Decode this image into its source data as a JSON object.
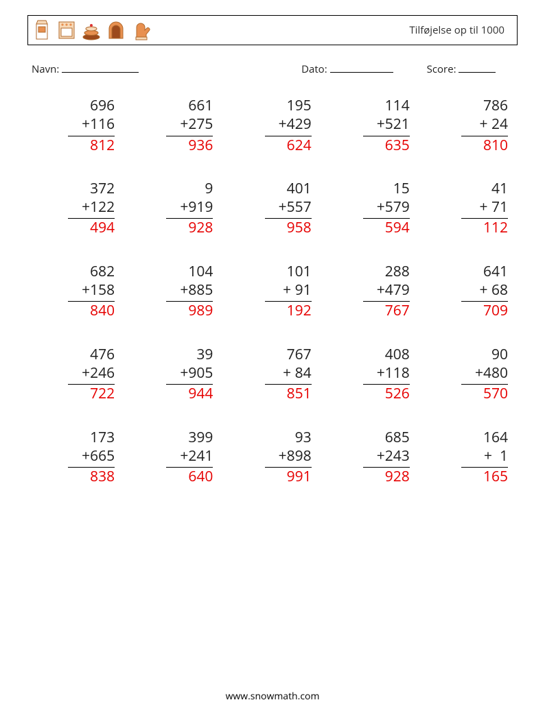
{
  "title": "Tilføjelse op til 1000",
  "labels": {
    "name": "Navn:",
    "date": "Dato:",
    "score": "Score:"
  },
  "underline_widths": {
    "name": 112,
    "date": 92,
    "score": 54
  },
  "colors": {
    "text": "#202020",
    "answer": "#e60000",
    "border": "#000000",
    "background": "#ffffff",
    "icon_outline": "#b06a2d",
    "icon_fill_light": "#f7d9b8",
    "icon_fill_accent": "#e89050",
    "icon_fill_dark": "#9c4a1c"
  },
  "typography": {
    "title_fontsize": 15,
    "meta_fontsize": 15,
    "problem_fontsize": 21,
    "footer_fontsize": 14
  },
  "layout": {
    "columns": 5,
    "rows": 5,
    "col_gap": 30,
    "row_gap": 36
  },
  "icons": [
    "milk-carton-icon",
    "oven-icon",
    "cake-icon",
    "bread-loaf-icon",
    "oven-mitt-icon"
  ],
  "problems": [
    {
      "a": 696,
      "b": 116,
      "ans": 812
    },
    {
      "a": 661,
      "b": 275,
      "ans": 936
    },
    {
      "a": 195,
      "b": 429,
      "ans": 624
    },
    {
      "a": 114,
      "b": 521,
      "ans": 635
    },
    {
      "a": 786,
      "b": 24,
      "ans": 810
    },
    {
      "a": 372,
      "b": 122,
      "ans": 494
    },
    {
      "a": 9,
      "b": 919,
      "ans": 928
    },
    {
      "a": 401,
      "b": 557,
      "ans": 958
    },
    {
      "a": 15,
      "b": 579,
      "ans": 594
    },
    {
      "a": 41,
      "b": 71,
      "ans": 112
    },
    {
      "a": 682,
      "b": 158,
      "ans": 840
    },
    {
      "a": 104,
      "b": 885,
      "ans": 989
    },
    {
      "a": 101,
      "b": 91,
      "ans": 192
    },
    {
      "a": 288,
      "b": 479,
      "ans": 767
    },
    {
      "a": 641,
      "b": 68,
      "ans": 709
    },
    {
      "a": 476,
      "b": 246,
      "ans": 722
    },
    {
      "a": 39,
      "b": 905,
      "ans": 944
    },
    {
      "a": 767,
      "b": 84,
      "ans": 851
    },
    {
      "a": 408,
      "b": 118,
      "ans": 526
    },
    {
      "a": 90,
      "b": 480,
      "ans": 570
    },
    {
      "a": 173,
      "b": 665,
      "ans": 838
    },
    {
      "a": 399,
      "b": 241,
      "ans": 640
    },
    {
      "a": 93,
      "b": 898,
      "ans": 991
    },
    {
      "a": 685,
      "b": 243,
      "ans": 928
    },
    {
      "a": 164,
      "b": 1,
      "ans": 165
    }
  ],
  "footer": "www.snowmath.com"
}
